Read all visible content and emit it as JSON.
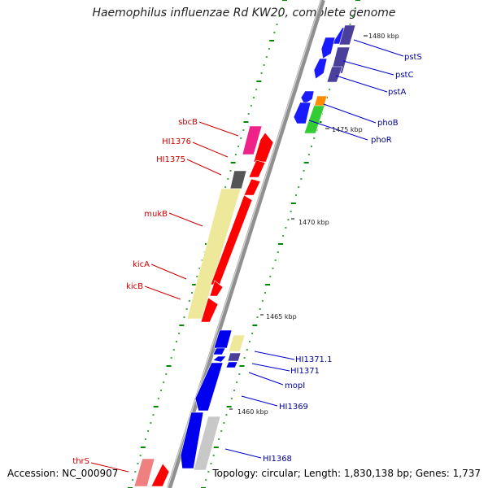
{
  "title": "Haemophilus influenzae Rd KW20, complete genome",
  "accession": "Accession: NC_000907",
  "topology": "Topology: circular; Length: 1,830,138 bp; Genes: 1,737",
  "colors": {
    "backbone": "#909090",
    "forward_gene": "#ff0000",
    "reverse_gene": "#0000ee",
    "label_forward": "#cc0000",
    "label_reverse": "#000099",
    "tick": "#008800"
  },
  "kbp_markers": [
    {
      "label": "1480 kbp"
    },
    {
      "label": "1475 kbp"
    },
    {
      "label": "1470 kbp"
    },
    {
      "label": "1465 kbp"
    },
    {
      "label": "1460 kbp"
    }
  ],
  "gene_labels": [
    {
      "name": "pstS",
      "strand": "reverse"
    },
    {
      "name": "pstC",
      "strand": "reverse"
    },
    {
      "name": "pstA",
      "strand": "reverse"
    },
    {
      "name": "phoB",
      "strand": "reverse"
    },
    {
      "name": "phoR",
      "strand": "reverse"
    },
    {
      "name": "sbcB",
      "strand": "forward"
    },
    {
      "name": "HI1376",
      "strand": "forward"
    },
    {
      "name": "HI1375",
      "strand": "forward"
    },
    {
      "name": "mukB",
      "strand": "forward"
    },
    {
      "name": "kicA",
      "strand": "forward"
    },
    {
      "name": "kicB",
      "strand": "forward"
    },
    {
      "name": "HI1371.1",
      "strand": "reverse"
    },
    {
      "name": "HI1371",
      "strand": "reverse"
    },
    {
      "name": "mopI",
      "strand": "reverse"
    },
    {
      "name": "HI1369",
      "strand": "reverse"
    },
    {
      "name": "HI1368",
      "strand": "reverse"
    },
    {
      "name": "thrS",
      "strand": "forward"
    }
  ]
}
